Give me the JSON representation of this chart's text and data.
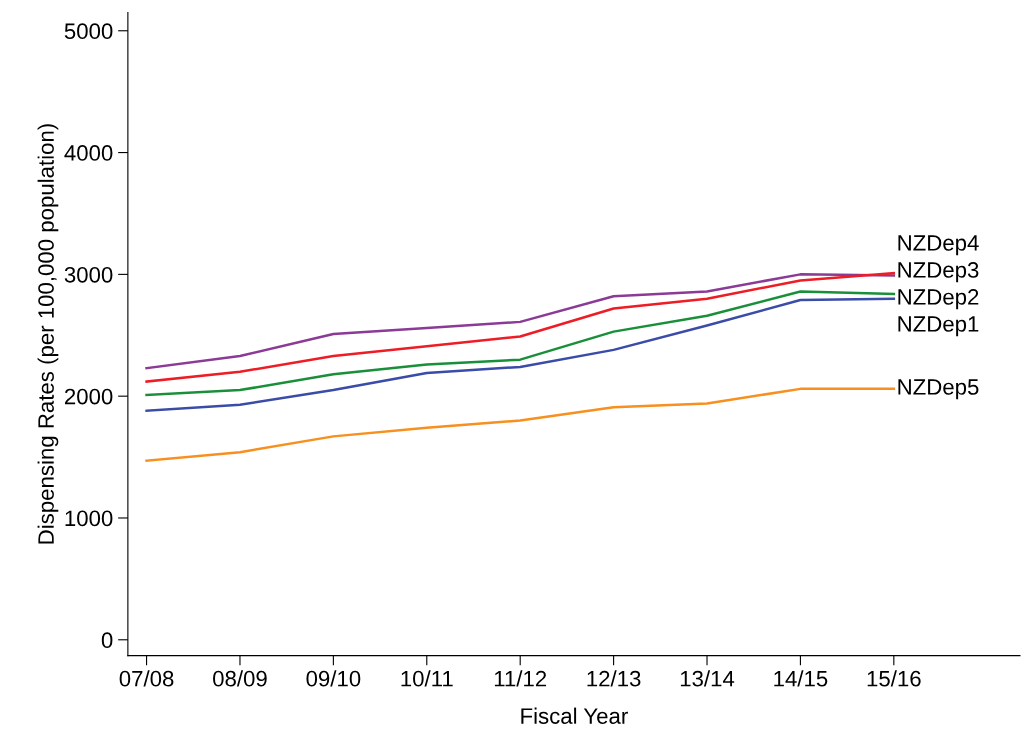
{
  "chart_data": {
    "type": "line",
    "xlabel": "Fiscal Year",
    "ylabel": "Dispensing Rates (per 100,000 population)",
    "categories": [
      "07/08",
      "08/09",
      "09/10",
      "10/11",
      "11/12",
      "12/13",
      "13/14",
      "14/15",
      "15/16"
    ],
    "ylim": [
      -130,
      5150
    ],
    "yticks": [
      0,
      1000,
      2000,
      3000,
      4000,
      5000
    ],
    "grid": false,
    "legend": false,
    "marker": "none",
    "line_style": "solid",
    "series": [
      {
        "name": "NZDep4",
        "color": "#8b3a96",
        "values": [
          2230,
          2330,
          2510,
          2560,
          2610,
          2820,
          2860,
          3000,
          2990
        ]
      },
      {
        "name": "NZDep3",
        "color": "#ee1c25",
        "values": [
          2120,
          2200,
          2330,
          2410,
          2490,
          2720,
          2800,
          2950,
          3010
        ]
      },
      {
        "name": "NZDep2",
        "color": "#1a8f3a",
        "values": [
          2010,
          2050,
          2180,
          2260,
          2300,
          2530,
          2660,
          2860,
          2840
        ]
      },
      {
        "name": "NZDep1",
        "color": "#3a4ba8",
        "values": [
          1880,
          1930,
          2050,
          2190,
          2240,
          2380,
          2580,
          2790,
          2800
        ]
      },
      {
        "name": "NZDep5",
        "color": "#f7901e",
        "values": [
          1470,
          1540,
          1670,
          1740,
          1800,
          1910,
          1940,
          2060,
          2060
        ]
      }
    ]
  }
}
